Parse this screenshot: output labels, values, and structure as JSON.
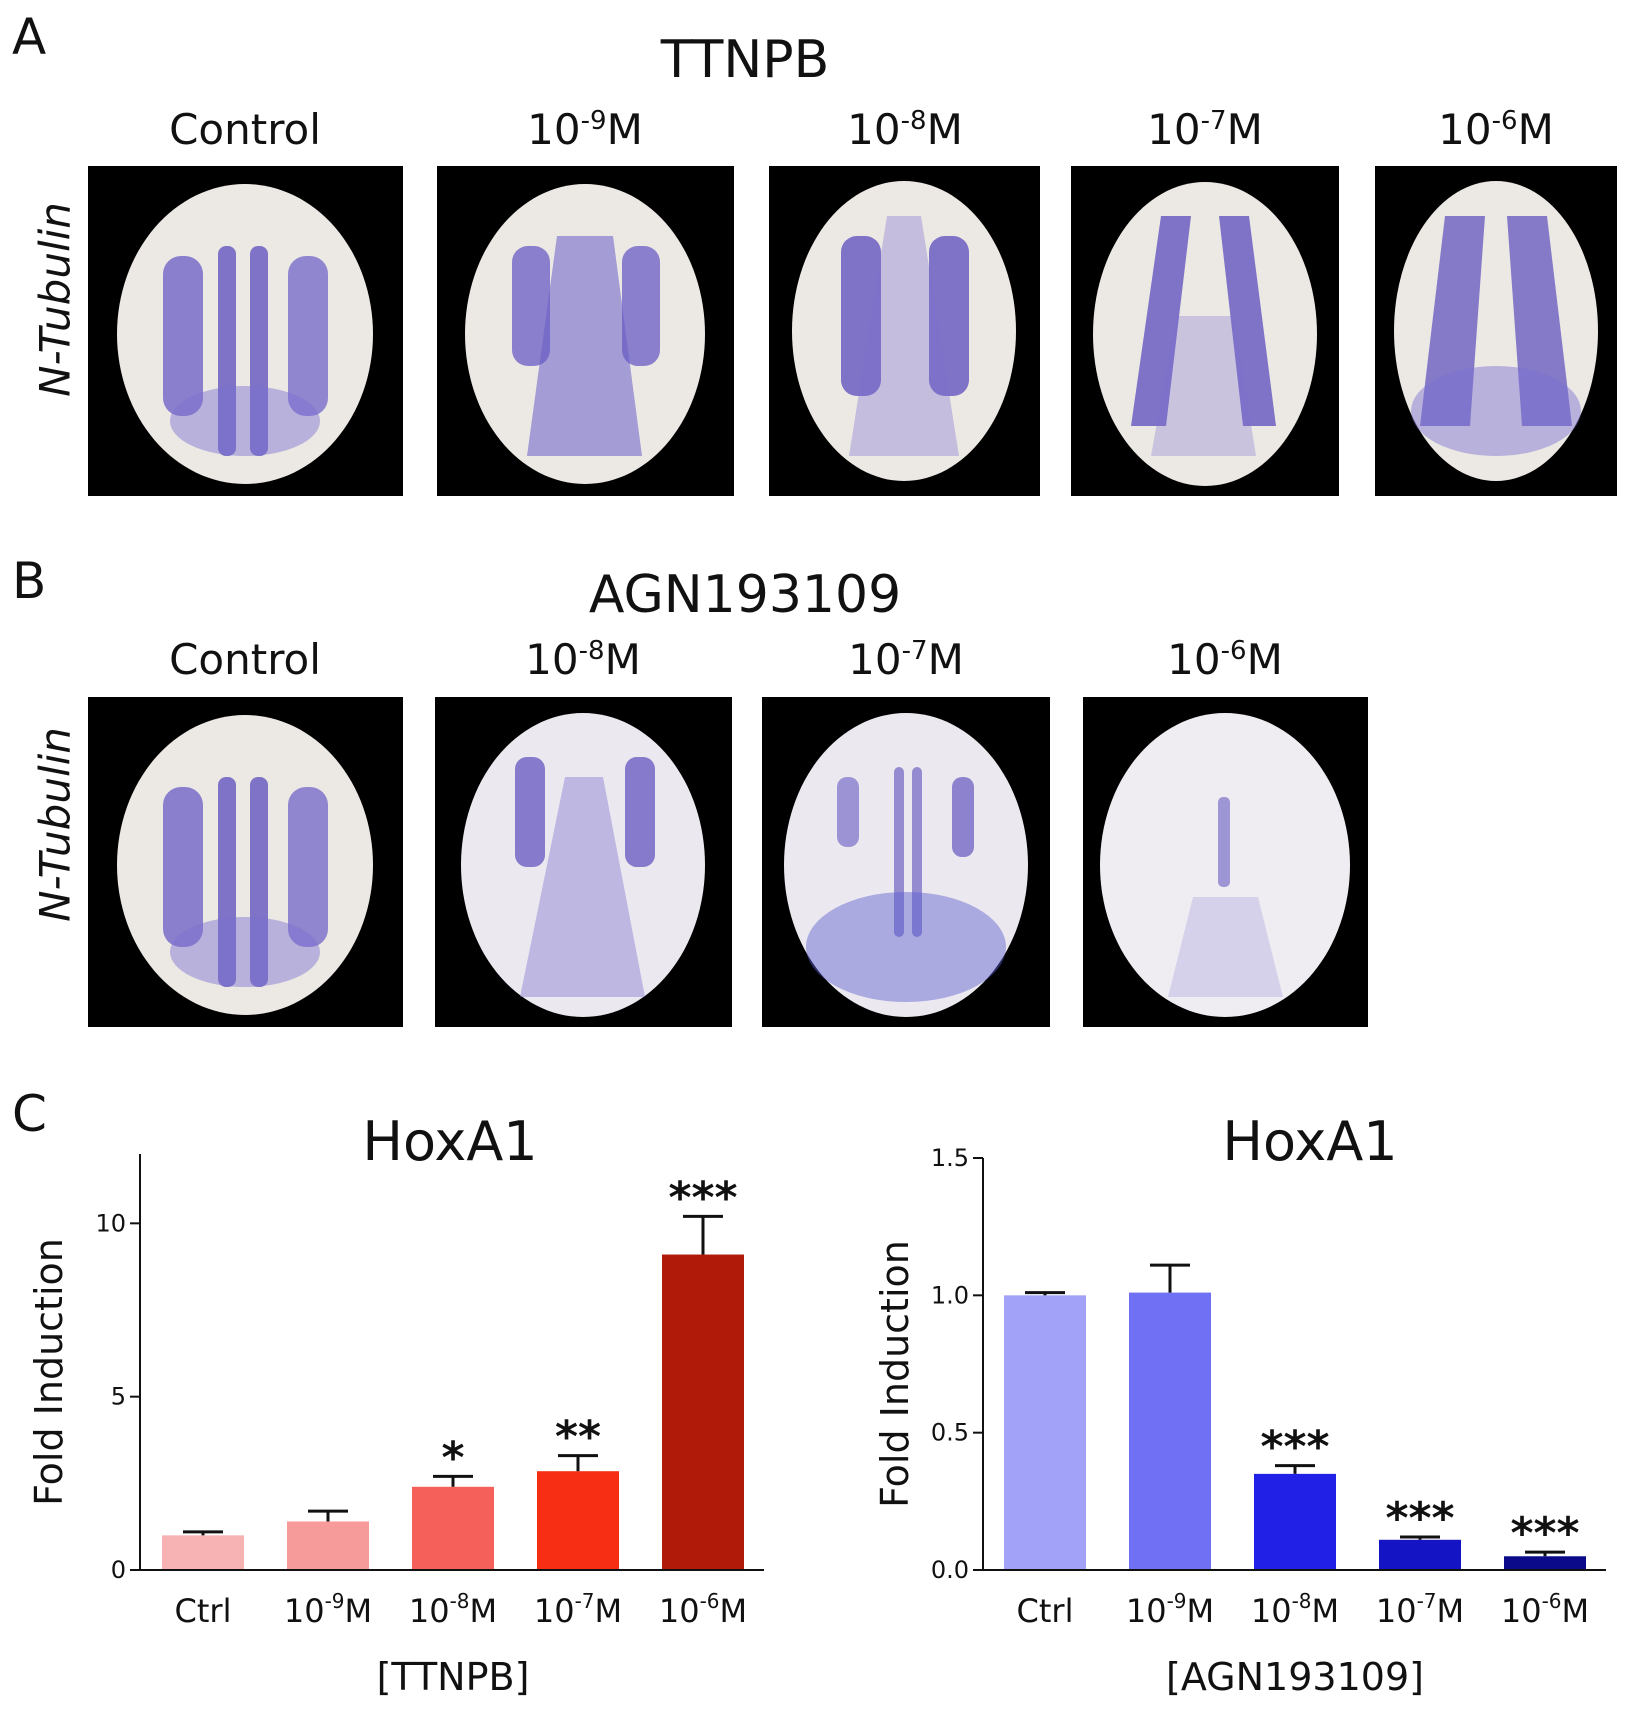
{
  "panels": {
    "A": {
      "letter": "A",
      "title": "TTNPB",
      "row_label": "N-Tubulin",
      "columns": [
        {
          "base": "Control",
          "exp": ""
        },
        {
          "base": "10",
          "exp": "-9",
          "unit": "M"
        },
        {
          "base": "10",
          "exp": "-8",
          "unit": "M"
        },
        {
          "base": "10",
          "exp": "-7",
          "unit": "M"
        },
        {
          "base": "10",
          "exp": "-6",
          "unit": "M"
        }
      ]
    },
    "B": {
      "letter": "B",
      "title": "AGN193109",
      "row_label": "N-Tubulin",
      "columns": [
        {
          "base": "Control",
          "exp": ""
        },
        {
          "base": "10",
          "exp": "-8",
          "unit": "M"
        },
        {
          "base": "10",
          "exp": "-7",
          "unit": "M"
        },
        {
          "base": "10",
          "exp": "-6",
          "unit": "M"
        }
      ]
    },
    "C": {
      "letter": "C"
    }
  },
  "chart_data": [
    {
      "type": "bar",
      "title": "HoxA1",
      "xlabel": "[TTNPB]",
      "ylabel": "Fold Induction",
      "ylim": [
        0,
        12
      ],
      "yticks": [
        "0",
        "5",
        "10"
      ],
      "ytick_values": [
        0,
        5,
        10
      ],
      "categories": [
        {
          "base": "Ctrl",
          "exp": "",
          "unit": ""
        },
        {
          "base": "10",
          "exp": "-9",
          "unit": "M"
        },
        {
          "base": "10",
          "exp": "-8",
          "unit": "M"
        },
        {
          "base": "10",
          "exp": "-7",
          "unit": "M"
        },
        {
          "base": "10",
          "exp": "-6",
          "unit": "M"
        }
      ],
      "values": [
        1.0,
        1.4,
        2.4,
        2.85,
        9.1
      ],
      "errors": [
        0.1,
        0.3,
        0.3,
        0.45,
        1.1
      ],
      "significance": [
        "",
        "",
        "*",
        "**",
        "***"
      ],
      "colors": [
        "#f7b3b3",
        "#f79a9a",
        "#f5605a",
        "#f72e14",
        "#b01a08"
      ]
    },
    {
      "type": "bar",
      "title": "HoxA1",
      "xlabel": "[AGN193109]",
      "ylabel": "Fold Induction",
      "ylim": [
        0,
        1.5
      ],
      "yticks": [
        "0.0",
        "0.5",
        "1.0",
        "1.5"
      ],
      "ytick_values": [
        0,
        0.5,
        1.0,
        1.5
      ],
      "categories": [
        {
          "base": "Ctrl",
          "exp": "",
          "unit": ""
        },
        {
          "base": "10",
          "exp": "-9",
          "unit": "M"
        },
        {
          "base": "10",
          "exp": "-8",
          "unit": "M"
        },
        {
          "base": "10",
          "exp": "-7",
          "unit": "M"
        },
        {
          "base": "10",
          "exp": "-6",
          "unit": "M"
        }
      ],
      "values": [
        1.0,
        1.01,
        0.35,
        0.11,
        0.05
      ],
      "errors": [
        0.01,
        0.1,
        0.03,
        0.01,
        0.015
      ],
      "significance": [
        "",
        "",
        "***",
        "***",
        "***"
      ],
      "colors": [
        "#a2a2f8",
        "#7070f4",
        "#2020e6",
        "#1414c4",
        "#0a0a8a"
      ]
    }
  ]
}
